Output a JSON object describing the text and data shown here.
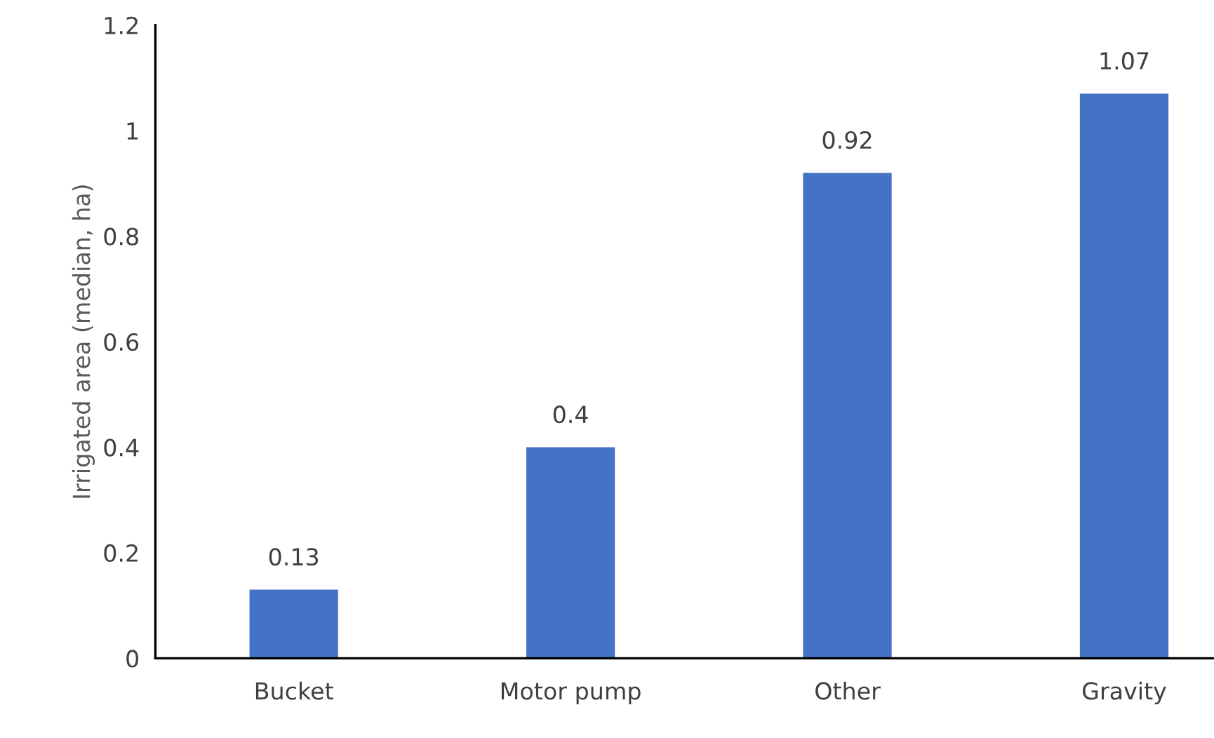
{
  "chart_data": {
    "type": "bar",
    "ylabel": "Irrigated area (median, ha)",
    "categories": [
      "Bucket",
      "Motor pump",
      "Other",
      "Gravity"
    ],
    "values": [
      0.13,
      0.4,
      0.92,
      1.07
    ],
    "color": "#4472c4",
    "ylim": [
      0,
      1.2
    ],
    "yticks": [
      0,
      0.2,
      0.4,
      0.6,
      0.8,
      1,
      1.2
    ],
    "data_labels": true,
    "grid": false,
    "legend": false
  }
}
